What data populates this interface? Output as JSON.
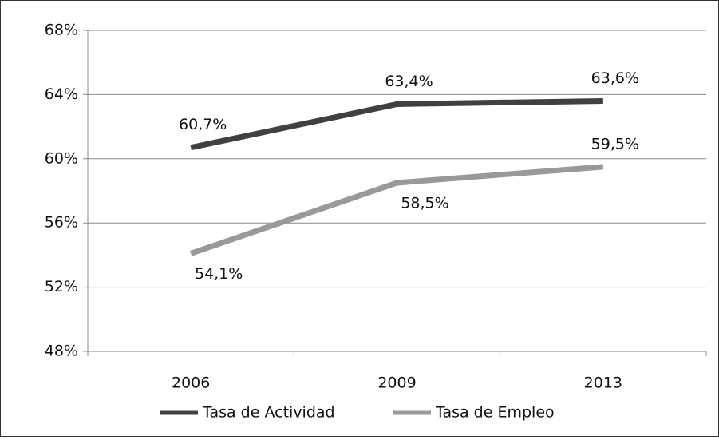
{
  "chart_data": {
    "type": "line",
    "categories": [
      "2006",
      "2009",
      "2013"
    ],
    "series": [
      {
        "name": "Tasa de Actividad",
        "color": "#404040",
        "values": [
          60.7,
          63.4,
          63.6
        ],
        "value_labels": [
          "60,7%",
          "63,4%",
          "63,6%"
        ]
      },
      {
        "name": "Tasa de Empleo",
        "color": "#999999",
        "values": [
          54.1,
          58.5,
          59.5
        ],
        "value_labels": [
          "54,1%",
          "58,5%",
          "59,5%"
        ]
      }
    ],
    "ylim": [
      48,
      68
    ],
    "yticks": [
      {
        "value": 48,
        "label": "48%"
      },
      {
        "value": 52,
        "label": "52%"
      },
      {
        "value": 56,
        "label": "56%"
      },
      {
        "value": 60,
        "label": "60%"
      },
      {
        "value": 64,
        "label": "64%"
      },
      {
        "value": 68,
        "label": "68%"
      }
    ],
    "grid": true,
    "legend": "bottom"
  }
}
